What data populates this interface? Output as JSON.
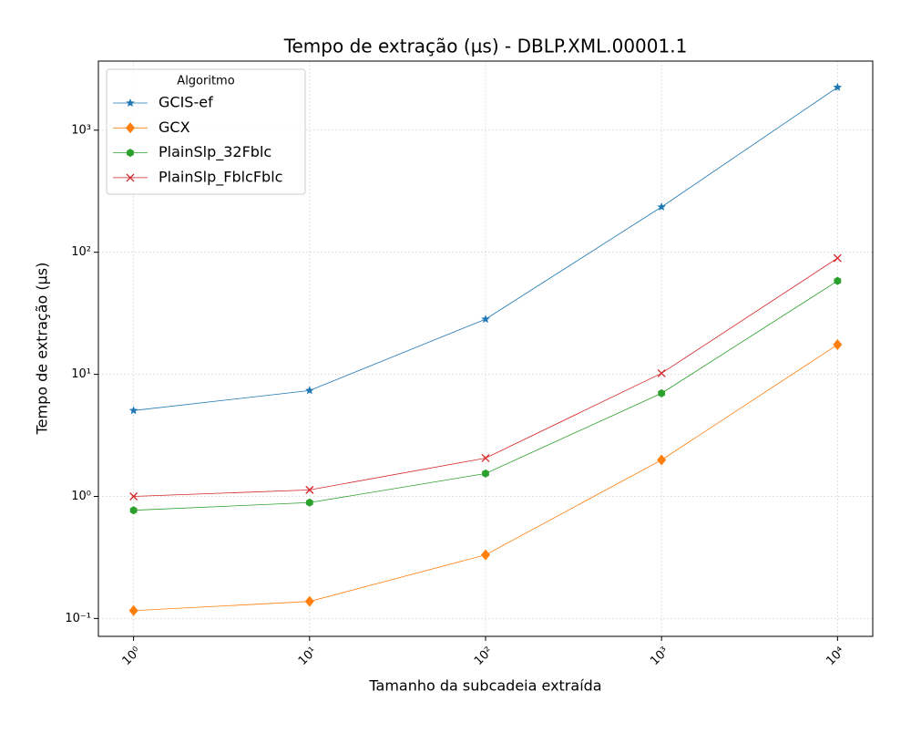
{
  "chart_data": {
    "type": "line",
    "title": "Tempo de extração (µs) - DBLP.XML.00001.1",
    "x_label": "Tamanho da subcadeia extraída",
    "y_label": "Tempo de extração (µs)",
    "x": [
      1,
      10,
      100,
      1000,
      10000
    ],
    "series": [
      {
        "name": "GCIS-ef",
        "color": "#1f77b4",
        "marker": "star",
        "values": [
          5.05,
          7.37,
          28.3,
          235,
          2245
        ]
      },
      {
        "name": "GCX",
        "color": "#ff7f0e",
        "marker": "diamond",
        "values": [
          0.116,
          0.138,
          0.332,
          1.99,
          17.5
        ]
      },
      {
        "name": "PlainSlp_32Fblc",
        "color": "#2ca02c",
        "marker": "hexagon",
        "values": [
          0.77,
          0.89,
          1.54,
          7.0,
          58.2
        ]
      },
      {
        "name": "PlainSlp_FblcFblc",
        "color": "#d62728",
        "marker": "x",
        "values": [
          1.0,
          1.13,
          2.06,
          10.2,
          89.5
        ]
      }
    ],
    "xscale": "log",
    "yscale": "log",
    "xlim": [
      0.631,
      15849
    ],
    "ylim": [
      0.0714,
      3681
    ],
    "xticks": [
      {
        "value": 1,
        "label": "10⁰"
      },
      {
        "value": 10,
        "label": "10¹"
      },
      {
        "value": 100,
        "label": "10²"
      },
      {
        "value": 1000,
        "label": "10³"
      },
      {
        "value": 10000,
        "label": "10⁴"
      }
    ],
    "yticks": [
      {
        "value": 0.1,
        "label": "10⁻¹"
      },
      {
        "value": 1,
        "label": "10⁰"
      },
      {
        "value": 10,
        "label": "10¹"
      },
      {
        "value": 100,
        "label": "10²"
      },
      {
        "value": 1000,
        "label": "10³"
      }
    ],
    "grid": true,
    "legend": "upper left",
    "legend_title": "Algoritmo"
  }
}
